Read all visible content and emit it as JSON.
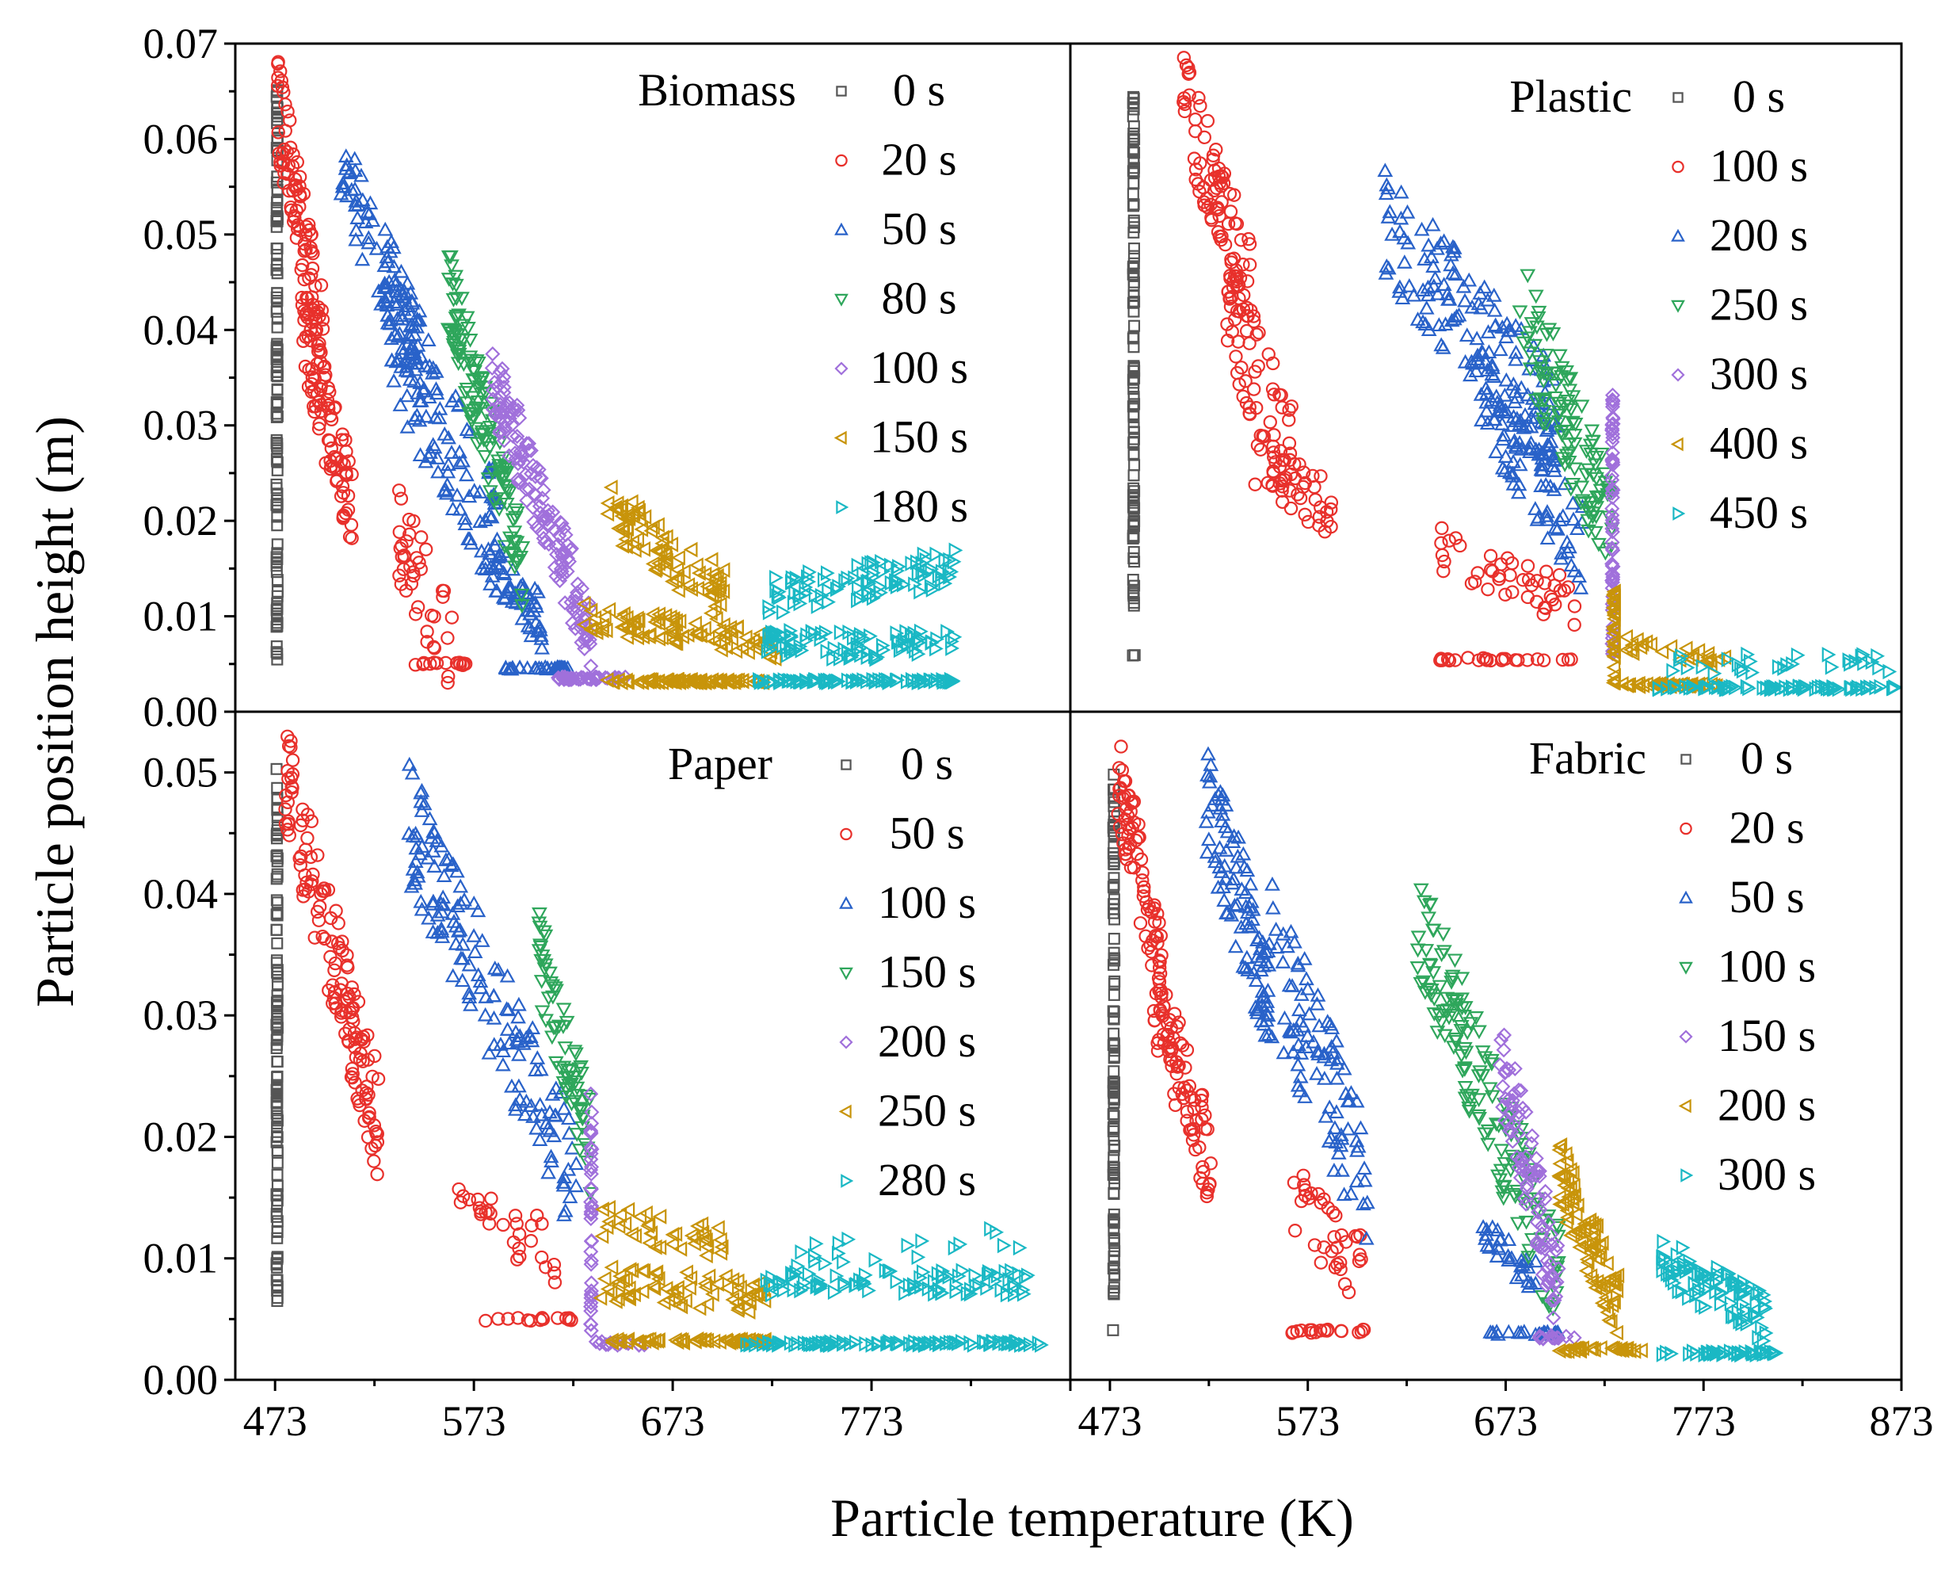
{
  "chart_data": {
    "type": "scatter",
    "xlabel": "Particle temperature (K)",
    "ylabel": "Particle position height (m)",
    "xlim": [
      453,
      873
    ],
    "x_ticks": [
      "473",
      "573",
      "673",
      "773",
      "873"
    ],
    "panels": [
      {
        "id": "biomass",
        "title": "Biomass",
        "ylim": [
          0,
          0.07
        ],
        "y_ticks": [
          "0.00",
          "0.01",
          "0.02",
          "0.03",
          "0.04",
          "0.05",
          "0.06",
          "0.07"
        ],
        "series": [
          {
            "name": "0 s",
            "marker": "square",
            "color": "#555555",
            "clusters": [
              {
                "type": "vline",
                "x": 474,
                "ymin": 0.005,
                "ymax": 0.066,
                "n": 120
              }
            ]
          },
          {
            "name": "20 s",
            "marker": "circle",
            "color": "#e8302b",
            "clusters": [
              {
                "type": "band",
                "x0": 474,
                "x1": 498,
                "y0_start": 0.064,
                "y0_end": 0.038,
                "h": 0.01,
                "n": 90
              },
              {
                "type": "band",
                "x0": 486,
                "x1": 512,
                "y0_start": 0.04,
                "y0_end": 0.021,
                "h": 0.01,
                "n": 90
              },
              {
                "type": "band",
                "x0": 535,
                "x1": 562,
                "y0_start": 0.019,
                "y0_end": 0.006,
                "h": 0.01,
                "n": 40
              },
              {
                "type": "line",
                "x0": 537,
                "x1": 570,
                "y": 0.005,
                "n": 14
              }
            ]
          },
          {
            "name": "50 s",
            "marker": "triangle-up",
            "color": "#2962c9",
            "clusters": [
              {
                "type": "band",
                "x0": 506,
                "x1": 548,
                "y0_start": 0.058,
                "y0_end": 0.036,
                "h": 0.01,
                "n": 100
              },
              {
                "type": "band",
                "x0": 530,
                "x1": 585,
                "y0_start": 0.04,
                "y0_end": 0.018,
                "h": 0.014,
                "n": 110
              },
              {
                "type": "band",
                "x0": 583,
                "x1": 608,
                "y0_start": 0.016,
                "y0_end": 0.009,
                "h": 0.006,
                "n": 50
              },
              {
                "type": "line",
                "x0": 587,
                "x1": 622,
                "y": 0.0045,
                "n": 30
              }
            ]
          },
          {
            "name": "80 s",
            "marker": "triangle-down",
            "color": "#2ea65b",
            "clusters": [
              {
                "type": "band",
                "x0": 560,
                "x1": 598,
                "y0_start": 0.044,
                "y0_end": 0.015,
                "h": 0.01,
                "n": 130
              }
            ]
          },
          {
            "name": "100 s",
            "marker": "diamond",
            "color": "#a070db",
            "clusters": [
              {
                "type": "band",
                "x0": 582,
                "x1": 632,
                "y0_start": 0.035,
                "y0_end": 0.008,
                "h": 0.008,
                "n": 150
              },
              {
                "type": "line",
                "x0": 615,
                "x1": 650,
                "y": 0.0035,
                "n": 40
              }
            ]
          },
          {
            "name": "150 s",
            "marker": "triangle-left",
            "color": "#c8940a",
            "clusters": [
              {
                "type": "band",
                "x0": 640,
                "x1": 700,
                "y0_start": 0.021,
                "y0_end": 0.012,
                "h": 0.006,
                "n": 90
              },
              {
                "type": "band",
                "x0": 625,
                "x1": 725,
                "y0_start": 0.01,
                "y0_end": 0.007,
                "h": 0.003,
                "n": 90
              },
              {
                "type": "line",
                "x0": 640,
                "x1": 720,
                "y": 0.0032,
                "n": 80
              }
            ]
          },
          {
            "name": "180 s",
            "marker": "triangle-right",
            "color": "#1ab8c4",
            "clusters": [
              {
                "type": "band",
                "x0": 720,
                "x1": 815,
                "y0_start": 0.012,
                "y0_end": 0.015,
                "h": 0.004,
                "n": 90
              },
              {
                "type": "band",
                "x0": 720,
                "x1": 815,
                "y0_start": 0.007,
                "y0_end": 0.007,
                "h": 0.003,
                "n": 90
              },
              {
                "type": "line",
                "x0": 715,
                "x1": 815,
                "y": 0.0032,
                "n": 80
              }
            ]
          }
        ]
      },
      {
        "id": "plastic",
        "title": "Plastic",
        "ylim": [
          0,
          0.07
        ],
        "y_ticks": [],
        "series": [
          {
            "name": "0 s",
            "marker": "square",
            "color": "#555555",
            "clusters": [
              {
                "type": "vline",
                "x": 485,
                "ymin": 0.011,
                "ymax": 0.065,
                "n": 110
              },
              {
                "type": "line",
                "x0": 484,
                "x1": 486,
                "y": 0.006,
                "n": 2
              }
            ]
          },
          {
            "name": "100 s",
            "marker": "circle",
            "color": "#e8302b",
            "clusters": [
              {
                "type": "band",
                "x0": 510,
                "x1": 545,
                "y0_start": 0.064,
                "y0_end": 0.044,
                "h": 0.01,
                "n": 80
              },
              {
                "type": "band",
                "x0": 532,
                "x1": 565,
                "y0_start": 0.043,
                "y0_end": 0.026,
                "h": 0.012,
                "n": 70
              },
              {
                "type": "band",
                "x0": 545,
                "x1": 585,
                "y0_start": 0.027,
                "y0_end": 0.021,
                "h": 0.006,
                "n": 40
              },
              {
                "type": "band",
                "x0": 640,
                "x1": 710,
                "y0_start": 0.017,
                "y0_end": 0.011,
                "h": 0.005,
                "n": 45
              },
              {
                "type": "line",
                "x0": 635,
                "x1": 710,
                "y": 0.0055,
                "n": 25
              }
            ]
          },
          {
            "name": "200 s",
            "marker": "triangle-up",
            "color": "#2962c9",
            "clusters": [
              {
                "type": "band",
                "x0": 612,
                "x1": 700,
                "y0_start": 0.051,
                "y0_end": 0.03,
                "h": 0.012,
                "n": 150
              },
              {
                "type": "band",
                "x0": 660,
                "x1": 712,
                "y0_start": 0.034,
                "y0_end": 0.017,
                "h": 0.01,
                "n": 90
              }
            ]
          },
          {
            "name": "250 s",
            "marker": "triangle-down",
            "color": "#2ea65b",
            "clusters": [
              {
                "type": "band",
                "x0": 680,
                "x1": 727,
                "y0_start": 0.042,
                "y0_end": 0.019,
                "h": 0.012,
                "n": 110
              }
            ]
          },
          {
            "name": "300 s",
            "marker": "diamond",
            "color": "#a070db",
            "clusters": [
              {
                "type": "vline",
                "x": 727,
                "ymin": 0.006,
                "ymax": 0.034,
                "n": 60
              }
            ]
          },
          {
            "name": "400 s",
            "marker": "triangle-left",
            "color": "#c8940a",
            "clusters": [
              {
                "type": "vline",
                "x": 728,
                "ymin": 0.003,
                "ymax": 0.013,
                "n": 40
              },
              {
                "type": "band",
                "x0": 730,
                "x1": 785,
                "y0_start": 0.007,
                "y0_end": 0.005,
                "h": 0.002,
                "n": 25
              },
              {
                "type": "line",
                "x0": 730,
                "x1": 780,
                "y": 0.0028,
                "n": 40
              }
            ]
          },
          {
            "name": "450 s",
            "marker": "triangle-right",
            "color": "#1ab8c4",
            "clusters": [
              {
                "type": "band",
                "x0": 755,
                "x1": 870,
                "y0_start": 0.005,
                "y0_end": 0.005,
                "h": 0.002,
                "n": 30
              },
              {
                "type": "line",
                "x0": 750,
                "x1": 870,
                "y": 0.0025,
                "n": 70
              }
            ]
          }
        ]
      },
      {
        "id": "paper",
        "title": "Paper",
        "ylim": [
          0,
          0.055
        ],
        "y_ticks": [
          "0.00",
          "0.01",
          "0.02",
          "0.03",
          "0.04",
          "0.05"
        ],
        "series": [
          {
            "name": "0 s",
            "marker": "square",
            "color": "#555555",
            "clusters": [
              {
                "type": "vline",
                "x": 474,
                "ymin": 0.005,
                "ymax": 0.051,
                "n": 110
              }
            ]
          },
          {
            "name": "50 s",
            "marker": "circle",
            "color": "#e8302b",
            "clusters": [
              {
                "type": "band",
                "x0": 478,
                "x1": 525,
                "y0_start": 0.05,
                "y0_end": 0.021,
                "h": 0.009,
                "n": 140
              },
              {
                "type": "band",
                "x0": 565,
                "x1": 615,
                "y0_start": 0.015,
                "y0_end": 0.01,
                "h": 0.005,
                "n": 30
              },
              {
                "type": "line",
                "x0": 574,
                "x1": 625,
                "y": 0.005,
                "n": 14
              }
            ]
          },
          {
            "name": "100 s",
            "marker": "triangle-up",
            "color": "#2962c9",
            "clusters": [
              {
                "type": "band",
                "x0": 540,
                "x1": 625,
                "y0_start": 0.046,
                "y0_end": 0.016,
                "h": 0.01,
                "n": 150
              }
            ]
          },
          {
            "name": "150 s",
            "marker": "triangle-down",
            "color": "#2ea65b",
            "clusters": [
              {
                "type": "band",
                "x0": 605,
                "x1": 632,
                "y0_start": 0.035,
                "y0_end": 0.019,
                "h": 0.008,
                "n": 70
              }
            ]
          },
          {
            "name": "200 s",
            "marker": "diamond",
            "color": "#a070db",
            "clusters": [
              {
                "type": "vline",
                "x": 632,
                "ymin": 0.004,
                "ymax": 0.024,
                "n": 40
              },
              {
                "type": "line",
                "x0": 633,
                "x1": 660,
                "y": 0.003,
                "n": 15
              }
            ]
          },
          {
            "name": "250 s",
            "marker": "triangle-left",
            "color": "#c8940a",
            "clusters": [
              {
                "type": "band",
                "x0": 635,
                "x1": 700,
                "y0_start": 0.013,
                "y0_end": 0.011,
                "h": 0.003,
                "n": 40
              },
              {
                "type": "band",
                "x0": 635,
                "x1": 720,
                "y0_start": 0.008,
                "y0_end": 0.007,
                "h": 0.003,
                "n": 70
              },
              {
                "type": "line",
                "x0": 640,
                "x1": 720,
                "y": 0.0032,
                "n": 60
              }
            ]
          },
          {
            "name": "280 s",
            "marker": "triangle-right",
            "color": "#1ab8c4",
            "clusters": [
              {
                "type": "band",
                "x0": 720,
                "x1": 860,
                "y0_start": 0.008,
                "y0_end": 0.008,
                "h": 0.002,
                "n": 90
              },
              {
                "type": "band",
                "x0": 720,
                "x1": 860,
                "y0_start": 0.01,
                "y0_end": 0.012,
                "h": 0.002,
                "n": 20
              },
              {
                "type": "line",
                "x0": 710,
                "x1": 860,
                "y": 0.003,
                "n": 90
              }
            ]
          }
        ]
      },
      {
        "id": "fabric",
        "title": "Fabric",
        "ylim": [
          0,
          0.055
        ],
        "y_ticks": [],
        "series": [
          {
            "name": "0 s",
            "marker": "square",
            "color": "#555555",
            "clusters": [
              {
                "type": "vline",
                "x": 475,
                "ymin": 0.007,
                "ymax": 0.05,
                "n": 110
              },
              {
                "type": "line",
                "x0": 474,
                "x1": 476,
                "y": 0.004,
                "n": 1
              }
            ]
          },
          {
            "name": "20 s",
            "marker": "circle",
            "color": "#e8302b",
            "clusters": [
              {
                "type": "band",
                "x0": 477,
                "x1": 500,
                "y0_start": 0.05,
                "y0_end": 0.032,
                "h": 0.008,
                "n": 80
              },
              {
                "type": "band",
                "x0": 495,
                "x1": 525,
                "y0_start": 0.032,
                "y0_end": 0.017,
                "h": 0.008,
                "n": 80
              },
              {
                "type": "band",
                "x0": 565,
                "x1": 600,
                "y0_start": 0.015,
                "y0_end": 0.009,
                "h": 0.006,
                "n": 35
              },
              {
                "type": "line",
                "x0": 565,
                "x1": 605,
                "y": 0.004,
                "n": 18
              }
            ]
          },
          {
            "name": "50 s",
            "marker": "triangle-up",
            "color": "#2962c9",
            "clusters": [
              {
                "type": "band",
                "x0": 520,
                "x1": 555,
                "y0_start": 0.049,
                "y0_end": 0.031,
                "h": 0.01,
                "n": 100
              },
              {
                "type": "band",
                "x0": 555,
                "x1": 605,
                "y0_start": 0.035,
                "y0_end": 0.016,
                "h": 0.012,
                "n": 90
              },
              {
                "type": "band",
                "x0": 660,
                "x1": 690,
                "y0_start": 0.012,
                "y0_end": 0.008,
                "h": 0.003,
                "n": 30
              },
              {
                "type": "line",
                "x0": 664,
                "x1": 700,
                "y": 0.0038,
                "n": 22
              }
            ]
          },
          {
            "name": "100 s",
            "marker": "triangle-down",
            "color": "#2ea65b",
            "clusters": [
              {
                "type": "band",
                "x0": 628,
                "x1": 700,
                "y0_start": 0.038,
                "y0_end": 0.008,
                "h": 0.01,
                "n": 150
              }
            ]
          },
          {
            "name": "150 s",
            "marker": "diamond",
            "color": "#a070db",
            "clusters": [
              {
                "type": "band",
                "x0": 670,
                "x1": 700,
                "y0_start": 0.027,
                "y0_end": 0.007,
                "h": 0.008,
                "n": 90
              },
              {
                "type": "line",
                "x0": 690,
                "x1": 710,
                "y": 0.0035,
                "n": 12
              }
            ]
          },
          {
            "name": "200 s",
            "marker": "triangle-left",
            "color": "#c8940a",
            "clusters": [
              {
                "type": "band",
                "x0": 700,
                "x1": 730,
                "y0_start": 0.017,
                "y0_end": 0.006,
                "h": 0.006,
                "n": 90
              },
              {
                "type": "line",
                "x0": 700,
                "x1": 745,
                "y": 0.0025,
                "n": 30
              }
            ]
          },
          {
            "name": "300 s",
            "marker": "triangle-right",
            "color": "#1ab8c4",
            "clusters": [
              {
                "type": "band",
                "x0": 750,
                "x1": 805,
                "y0_start": 0.01,
                "y0_end": 0.005,
                "h": 0.004,
                "n": 90
              },
              {
                "type": "line",
                "x0": 752,
                "x1": 810,
                "y": 0.0022,
                "n": 40
              }
            ]
          }
        ]
      }
    ]
  }
}
